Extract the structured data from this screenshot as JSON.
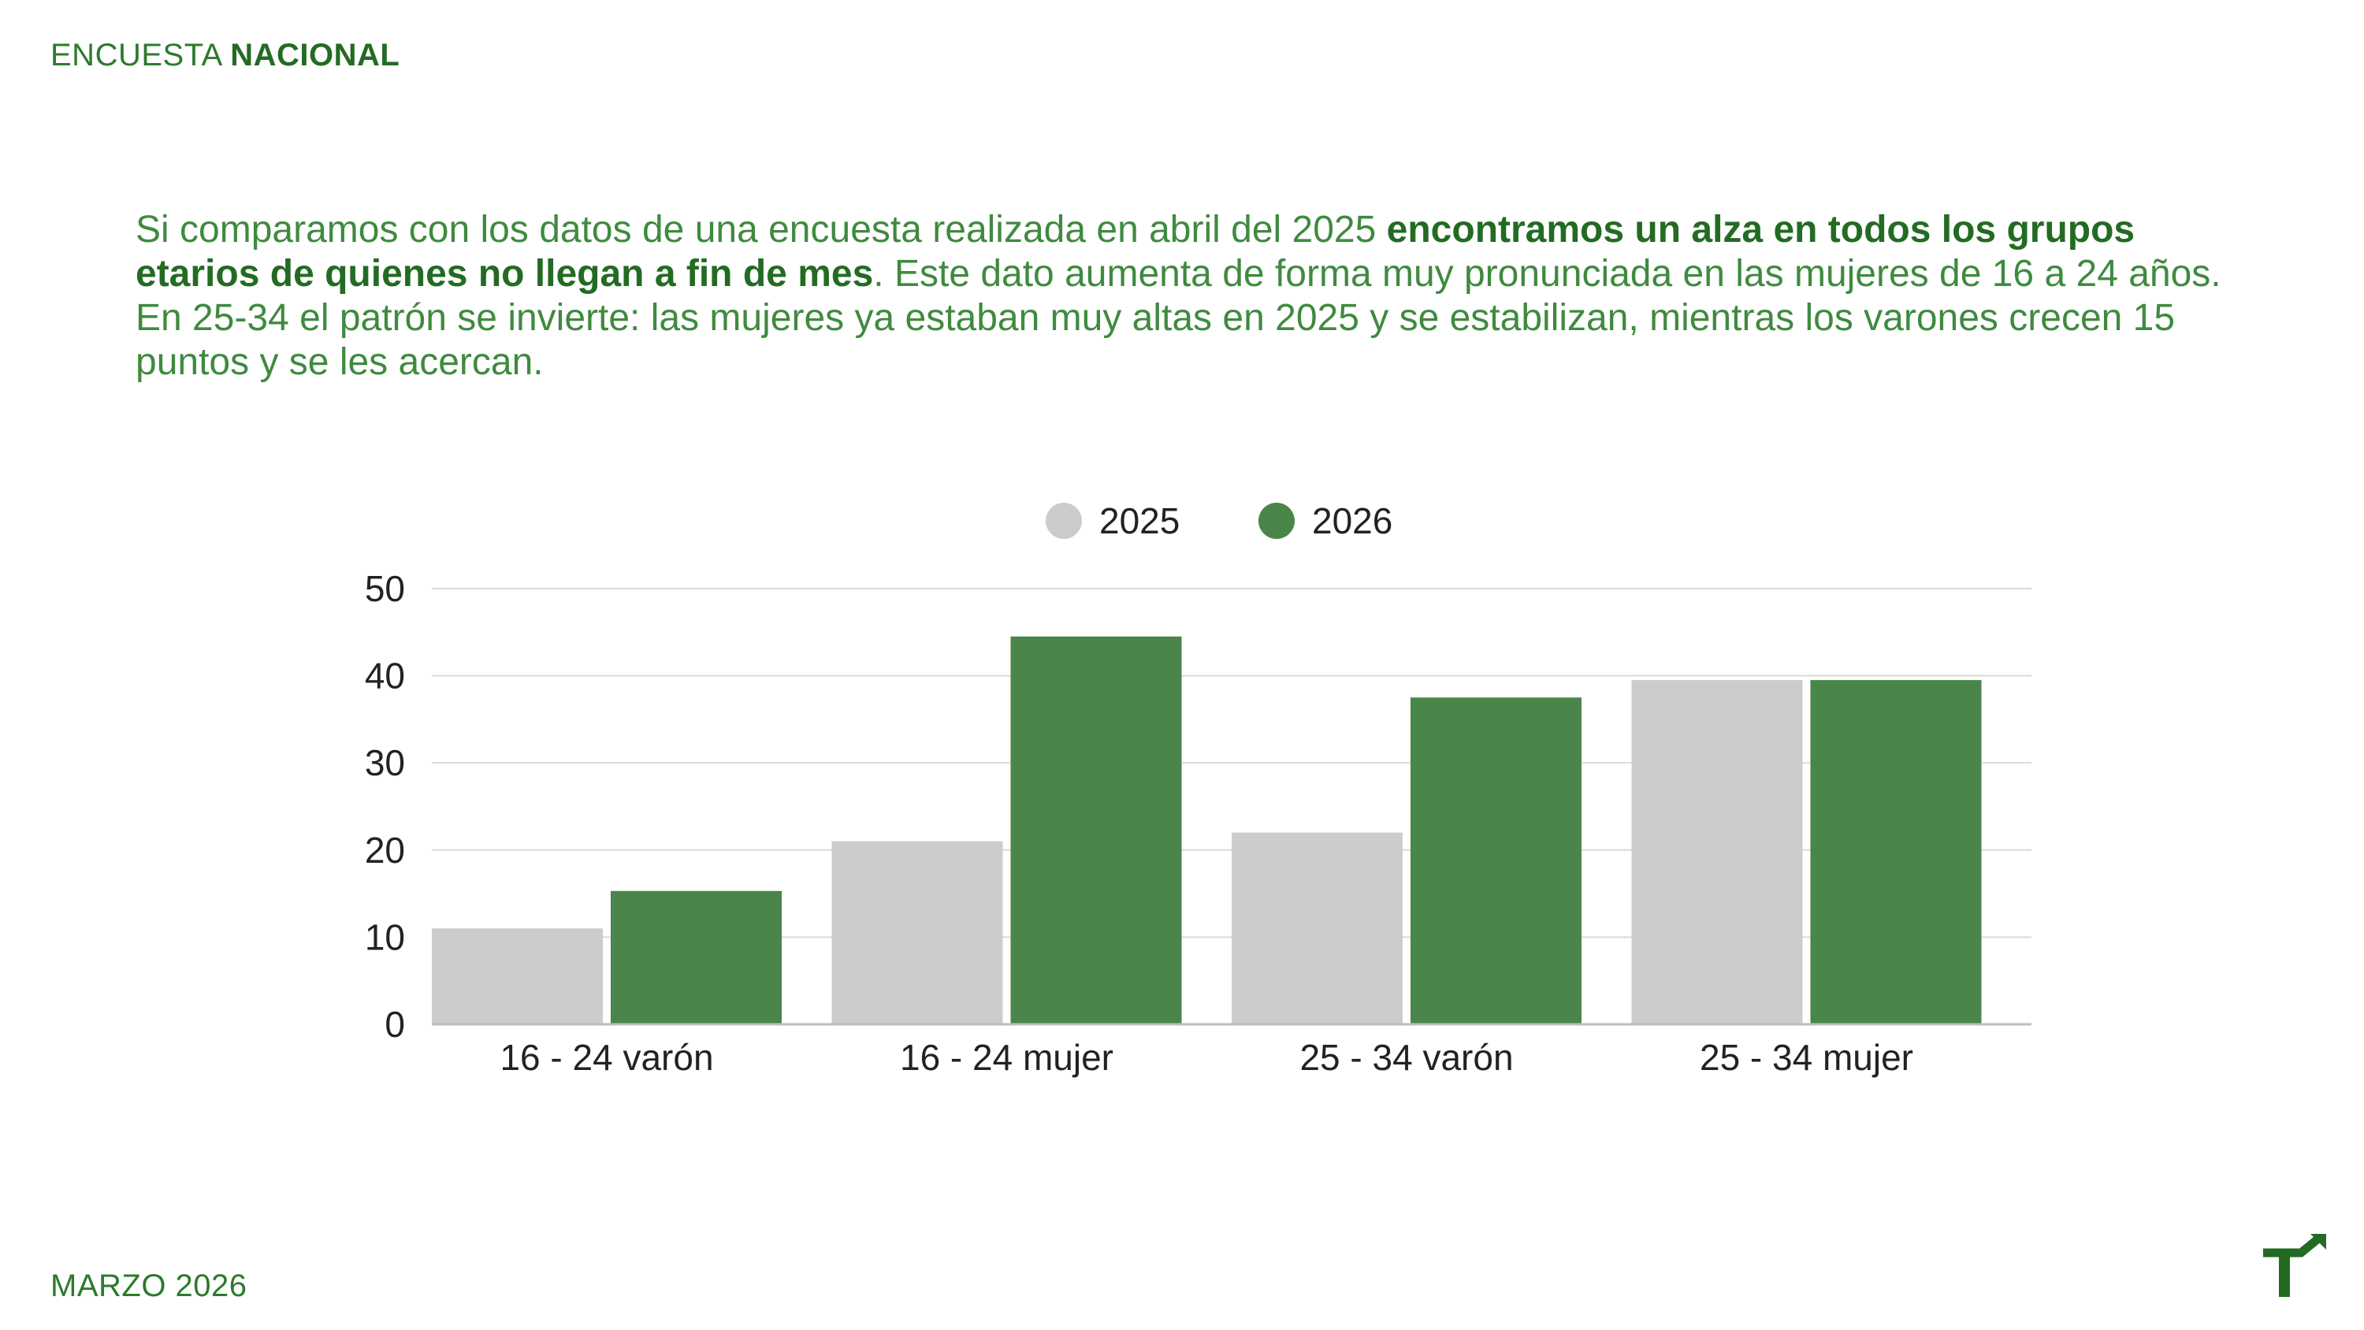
{
  "header": {
    "prefix": "ENCUESTA",
    "highlight": "NACIONAL"
  },
  "paragraph": {
    "part1": "Si comparamos con los datos de una encuesta realizada en abril del 2025 ",
    "bold": "encontramos un alza en todos los grupos etarios de quienes no llegan a fin de mes",
    "part2": ". Este dato aumenta de forma muy pronunciada en las mujeres de 16 a 24 años. En 25-34 el patrón se invierte: las mujeres ya estaban muy altas en 2025 y se estabilizan, mientras los varones crecen 15 puntos y se les acercan."
  },
  "chart_data": {
    "type": "bar",
    "categories": [
      "16 - 24 varón",
      "16 - 24 mujer",
      "25 - 34 varón",
      "25 - 34 mujer"
    ],
    "series": [
      {
        "name": "2025",
        "values": [
          11,
          21,
          22,
          39.5
        ],
        "color": "#cccccc"
      },
      {
        "name": "2026",
        "values": [
          15.3,
          44.5,
          37.5,
          39.5
        ],
        "color": "#4a854a"
      }
    ],
    "ylim": [
      0,
      50
    ],
    "yticks": [
      0,
      10,
      20,
      30,
      40,
      50
    ],
    "grid": true,
    "legend": "top-center",
    "title": "",
    "xlabel": "",
    "ylabel": ""
  },
  "footer": {
    "date": "MARZO 2026"
  },
  "icons": {
    "logo": "t-arrow-logo-icon"
  },
  "colors": {
    "brand_green": "#236b23",
    "text_green": "#3f8a3f"
  }
}
